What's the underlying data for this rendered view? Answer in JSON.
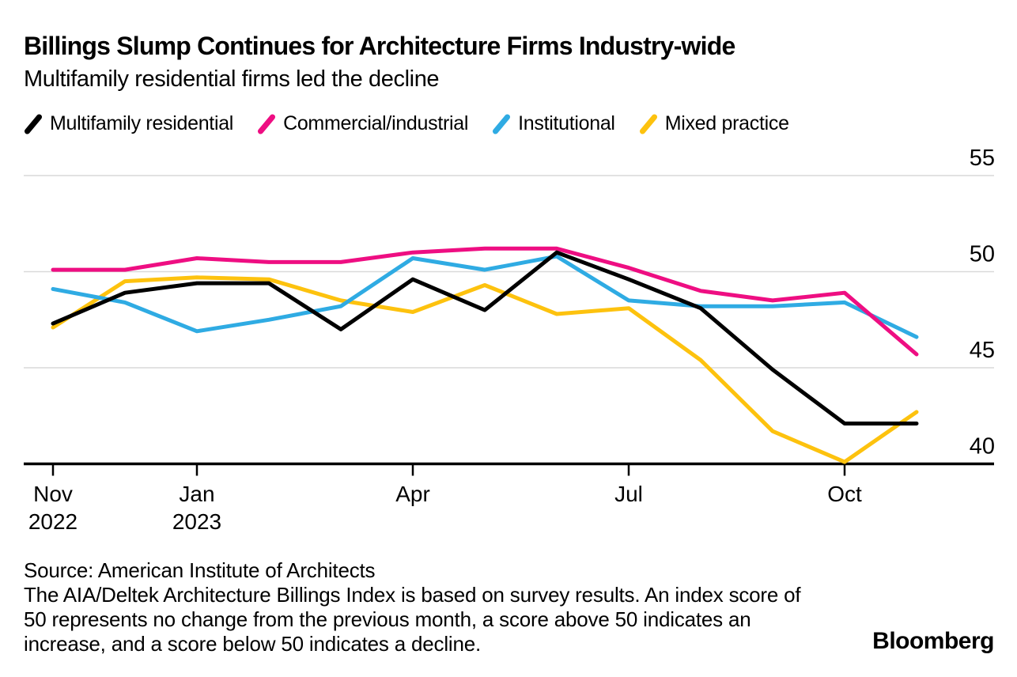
{
  "header": {
    "title": "Billings Slump Continues for Architecture Firms Industry-wide",
    "subtitle": "Multifamily residential firms led the decline"
  },
  "chart_data": {
    "type": "line",
    "title": "Billings Slump Continues for Architecture Firms Industry-wide",
    "subtitle": "Multifamily residential firms led the decline",
    "x": [
      "Nov 2022",
      "Dec 2022",
      "Jan 2023",
      "Feb 2023",
      "Mar 2023",
      "Apr 2023",
      "May 2023",
      "Jun 2023",
      "Jul 2023",
      "Aug 2023",
      "Sep 2023",
      "Oct 2023",
      "Nov 2023"
    ],
    "series": [
      {
        "name": "Multifamily residential",
        "color": "#000000",
        "values": [
          47.3,
          48.9,
          49.4,
          49.4,
          47.0,
          49.6,
          48.0,
          51.0,
          49.6,
          48.1,
          44.9,
          42.1,
          42.1
        ]
      },
      {
        "name": "Commercial/industrial",
        "color": "#ee0e82",
        "values": [
          50.1,
          50.1,
          50.7,
          50.5,
          50.5,
          51.0,
          51.2,
          51.2,
          50.2,
          49.0,
          48.5,
          48.9,
          45.7
        ]
      },
      {
        "name": "Institutional",
        "color": "#2fabe3",
        "values": [
          49.1,
          48.4,
          46.9,
          47.5,
          48.2,
          50.7,
          50.1,
          50.8,
          48.5,
          48.2,
          48.2,
          48.4,
          46.6
        ]
      },
      {
        "name": "Mixed practice",
        "color": "#fdc20e",
        "values": [
          47.1,
          49.5,
          49.7,
          49.6,
          48.5,
          47.9,
          49.3,
          47.8,
          48.1,
          45.4,
          41.7,
          40.1,
          42.7
        ]
      }
    ],
    "y_axis": {
      "side": "right",
      "ticks": [
        55,
        50,
        45,
        40
      ],
      "range": [
        39.5,
        55.6
      ]
    },
    "x_axis": {
      "ticks": [
        {
          "index": 0,
          "label": "Nov",
          "year": "2022"
        },
        {
          "index": 2,
          "label": "Jan",
          "year": "2023"
        },
        {
          "index": 5,
          "label": "Apr",
          "year": ""
        },
        {
          "index": 8,
          "label": "Jul",
          "year": ""
        },
        {
          "index": 11,
          "label": "Oct",
          "year": ""
        }
      ]
    },
    "grid": "horizontal",
    "legend_position": "top",
    "gridline_color": "#d9d9d9",
    "axis_color": "#000000"
  },
  "footer": {
    "source": "Source: American Institute of Architects",
    "note": "The AIA/Deltek Architecture Billings Index is based on survey results. An index score of 50 represents no change from the previous month, a score above 50 indicates an increase, and a score below 50 indicates a decline.",
    "brand": "Bloomberg"
  }
}
